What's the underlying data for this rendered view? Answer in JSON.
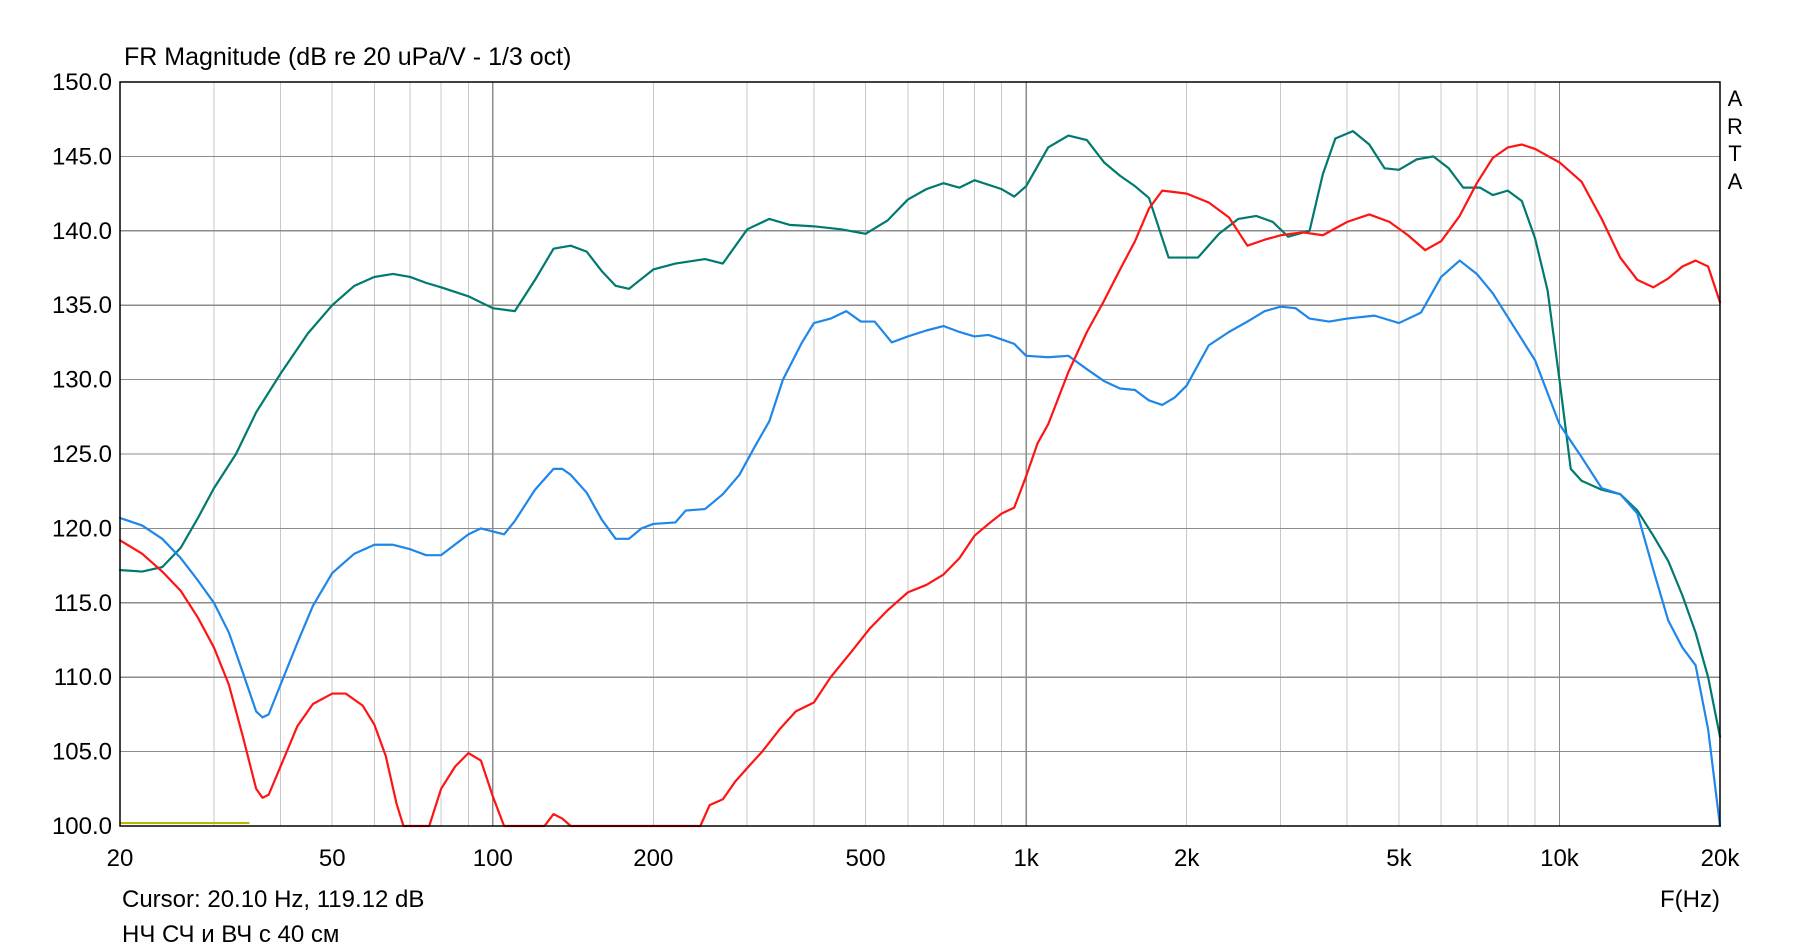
{
  "chart_data": {
    "type": "line",
    "title": "FR Magnitude (dB re 20 uPa/V - 1/3 oct)",
    "xlabel": "F(Hz)",
    "ylabel": "",
    "x_scale": "log",
    "xlim": [
      20,
      20000
    ],
    "ylim": [
      100,
      150
    ],
    "grid": true,
    "x_ticks": [
      20,
      50,
      100,
      200,
      500,
      1000,
      2000,
      5000,
      10000,
      20000
    ],
    "x_tick_labels": [
      "20",
      "50",
      "100",
      "200",
      "500",
      "1k",
      "2k",
      "5k",
      "10k",
      "20k"
    ],
    "y_ticks": [
      100,
      105,
      110,
      115,
      120,
      125,
      130,
      135,
      140,
      145,
      150
    ],
    "y_tick_labels": [
      "100.0",
      "105.0",
      "110.0",
      "115.0",
      "120.0",
      "125.0",
      "130.0",
      "135.0",
      "140.0",
      "145.0",
      "150.0"
    ],
    "logo_letters": [
      "A",
      "R",
      "T",
      "A"
    ],
    "cursor_text": "Cursor: 20.10 Hz, 119.12 dB",
    "note_text": "НЧ СЧ и ВЧ с 40 см",
    "colors": {
      "series_1": "#007a6e",
      "series_2": "#1f86ea",
      "series_3": "#ff1414",
      "grid": "#c8c8c8",
      "major_grid": "#8c8c8c",
      "axis": "#000000",
      "marker": "#b8b800"
    },
    "marker_segment": {
      "x": [
        20,
        35
      ],
      "y": 100.2
    },
    "series": [
      {
        "color": "#007a6e",
        "points": [
          [
            20,
            117.2
          ],
          [
            22,
            117.1
          ],
          [
            24,
            117.4
          ],
          [
            26,
            118.7
          ],
          [
            28,
            120.7
          ],
          [
            30,
            122.7
          ],
          [
            33,
            125.0
          ],
          [
            36,
            127.8
          ],
          [
            40,
            130.4
          ],
          [
            45,
            133.1
          ],
          [
            50,
            135.0
          ],
          [
            55,
            136.3
          ],
          [
            60,
            136.9
          ],
          [
            65,
            137.1
          ],
          [
            70,
            136.9
          ],
          [
            75,
            136.5
          ],
          [
            80,
            136.2
          ],
          [
            90,
            135.6
          ],
          [
            100,
            134.8
          ],
          [
            110,
            134.6
          ],
          [
            120,
            136.7
          ],
          [
            130,
            138.8
          ],
          [
            140,
            139.0
          ],
          [
            150,
            138.6
          ],
          [
            160,
            137.3
          ],
          [
            170,
            136.3
          ],
          [
            180,
            136.1
          ],
          [
            200,
            137.4
          ],
          [
            220,
            137.8
          ],
          [
            250,
            138.1
          ],
          [
            270,
            137.8
          ],
          [
            300,
            140.1
          ],
          [
            330,
            140.8
          ],
          [
            360,
            140.4
          ],
          [
            400,
            140.3
          ],
          [
            450,
            140.1
          ],
          [
            500,
            139.8
          ],
          [
            550,
            140.7
          ],
          [
            600,
            142.1
          ],
          [
            650,
            142.8
          ],
          [
            700,
            143.2
          ],
          [
            750,
            142.9
          ],
          [
            800,
            143.4
          ],
          [
            900,
            142.8
          ],
          [
            950,
            142.3
          ],
          [
            1000,
            143.0
          ],
          [
            1100,
            145.6
          ],
          [
            1200,
            146.4
          ],
          [
            1300,
            146.1
          ],
          [
            1400,
            144.6
          ],
          [
            1500,
            143.7
          ],
          [
            1600,
            143.0
          ],
          [
            1700,
            142.2
          ],
          [
            1850,
            138.2
          ],
          [
            2000,
            138.2
          ],
          [
            2100,
            138.2
          ],
          [
            2300,
            139.8
          ],
          [
            2500,
            140.8
          ],
          [
            2700,
            141.0
          ],
          [
            2900,
            140.6
          ],
          [
            3100,
            139.6
          ],
          [
            3400,
            140.0
          ],
          [
            3600,
            143.8
          ],
          [
            3800,
            146.2
          ],
          [
            4100,
            146.7
          ],
          [
            4400,
            145.8
          ],
          [
            4700,
            144.2
          ],
          [
            5000,
            144.1
          ],
          [
            5400,
            144.8
          ],
          [
            5800,
            145.0
          ],
          [
            6200,
            144.2
          ],
          [
            6600,
            142.9
          ],
          [
            7100,
            142.9
          ],
          [
            7500,
            142.4
          ],
          [
            8000,
            142.7
          ],
          [
            8500,
            142.0
          ],
          [
            9000,
            139.5
          ],
          [
            9500,
            136.0
          ],
          [
            10000,
            130.0
          ],
          [
            10500,
            124.0
          ],
          [
            11000,
            123.2
          ],
          [
            12000,
            122.6
          ],
          [
            13000,
            122.3
          ],
          [
            14000,
            121.2
          ],
          [
            15000,
            119.5
          ],
          [
            16000,
            117.8
          ],
          [
            17000,
            115.5
          ],
          [
            18000,
            113.0
          ],
          [
            19000,
            110.0
          ],
          [
            20000,
            106.0
          ]
        ]
      },
      {
        "color": "#1f86ea",
        "points": [
          [
            20,
            120.7
          ],
          [
            22,
            120.2
          ],
          [
            24,
            119.3
          ],
          [
            26,
            118.0
          ],
          [
            28,
            116.5
          ],
          [
            30,
            115.0
          ],
          [
            32,
            113.0
          ],
          [
            34,
            110.3
          ],
          [
            36,
            107.7
          ],
          [
            37,
            107.3
          ],
          [
            38,
            107.5
          ],
          [
            40,
            109.5
          ],
          [
            43,
            112.3
          ],
          [
            46,
            114.8
          ],
          [
            50,
            117.0
          ],
          [
            55,
            118.3
          ],
          [
            60,
            118.9
          ],
          [
            65,
            118.9
          ],
          [
            70,
            118.6
          ],
          [
            75,
            118.2
          ],
          [
            80,
            118.2
          ],
          [
            90,
            119.6
          ],
          [
            95,
            120.0
          ],
          [
            100,
            119.8
          ],
          [
            105,
            119.6
          ],
          [
            110,
            120.5
          ],
          [
            120,
            122.6
          ],
          [
            130,
            124.0
          ],
          [
            135,
            124.0
          ],
          [
            140,
            123.6
          ],
          [
            150,
            122.4
          ],
          [
            160,
            120.6
          ],
          [
            170,
            119.3
          ],
          [
            180,
            119.3
          ],
          [
            190,
            120.0
          ],
          [
            200,
            120.3
          ],
          [
            220,
            120.4
          ],
          [
            230,
            121.2
          ],
          [
            250,
            121.3
          ],
          [
            270,
            122.3
          ],
          [
            290,
            123.6
          ],
          [
            310,
            125.5
          ],
          [
            330,
            127.2
          ],
          [
            350,
            130.0
          ],
          [
            380,
            132.5
          ],
          [
            400,
            133.8
          ],
          [
            430,
            134.1
          ],
          [
            460,
            134.6
          ],
          [
            490,
            133.9
          ],
          [
            520,
            133.9
          ],
          [
            560,
            132.5
          ],
          [
            600,
            132.9
          ],
          [
            650,
            133.3
          ],
          [
            700,
            133.6
          ],
          [
            750,
            133.2
          ],
          [
            800,
            132.9
          ],
          [
            850,
            133.0
          ],
          [
            900,
            132.7
          ],
          [
            950,
            132.4
          ],
          [
            1000,
            131.6
          ],
          [
            1100,
            131.5
          ],
          [
            1200,
            131.6
          ],
          [
            1300,
            130.7
          ],
          [
            1400,
            129.9
          ],
          [
            1500,
            129.4
          ],
          [
            1600,
            129.3
          ],
          [
            1700,
            128.6
          ],
          [
            1800,
            128.3
          ],
          [
            1900,
            128.8
          ],
          [
            2000,
            129.6
          ],
          [
            2200,
            132.3
          ],
          [
            2400,
            133.2
          ],
          [
            2600,
            133.9
          ],
          [
            2800,
            134.6
          ],
          [
            3000,
            134.9
          ],
          [
            3200,
            134.8
          ],
          [
            3400,
            134.1
          ],
          [
            3700,
            133.9
          ],
          [
            4000,
            134.1
          ],
          [
            4500,
            134.3
          ],
          [
            5000,
            133.8
          ],
          [
            5500,
            134.5
          ],
          [
            6000,
            136.9
          ],
          [
            6500,
            138.0
          ],
          [
            7000,
            137.1
          ],
          [
            7500,
            135.8
          ],
          [
            8000,
            134.2
          ],
          [
            9000,
            131.3
          ],
          [
            10000,
            127.0
          ],
          [
            11000,
            124.8
          ],
          [
            12000,
            122.7
          ],
          [
            13000,
            122.3
          ],
          [
            14000,
            121.0
          ],
          [
            15000,
            117.2
          ],
          [
            16000,
            113.8
          ],
          [
            17000,
            112.0
          ],
          [
            18000,
            110.8
          ],
          [
            19000,
            106.5
          ],
          [
            20000,
            100.0
          ]
        ]
      },
      {
        "color": "#ff1414",
        "points": [
          [
            20,
            119.2
          ],
          [
            22,
            118.3
          ],
          [
            24,
            117.1
          ],
          [
            26,
            115.8
          ],
          [
            28,
            114.0
          ],
          [
            30,
            112.0
          ],
          [
            32,
            109.5
          ],
          [
            34,
            106.0
          ],
          [
            36,
            102.5
          ],
          [
            37,
            101.9
          ],
          [
            38,
            102.1
          ],
          [
            40,
            104.0
          ],
          [
            43,
            106.7
          ],
          [
            46,
            108.2
          ],
          [
            50,
            108.9
          ],
          [
            53,
            108.9
          ],
          [
            57,
            108.1
          ],
          [
            60,
            106.8
          ],
          [
            63,
            104.7
          ],
          [
            66,
            101.5
          ],
          [
            68,
            100.0
          ],
          [
            76,
            100.0
          ],
          [
            80,
            102.5
          ],
          [
            85,
            104.0
          ],
          [
            90,
            104.9
          ],
          [
            95,
            104.4
          ],
          [
            100,
            102.0
          ],
          [
            105,
            100.0
          ],
          [
            125,
            100.0
          ],
          [
            130,
            100.8
          ],
          [
            135,
            100.5
          ],
          [
            140,
            100.0
          ],
          [
            245,
            100.0
          ],
          [
            255,
            101.4
          ],
          [
            270,
            101.8
          ],
          [
            285,
            103.0
          ],
          [
            300,
            103.9
          ],
          [
            320,
            105.0
          ],
          [
            345,
            106.5
          ],
          [
            370,
            107.7
          ],
          [
            400,
            108.3
          ],
          [
            430,
            110.0
          ],
          [
            470,
            111.7
          ],
          [
            510,
            113.3
          ],
          [
            550,
            114.5
          ],
          [
            600,
            115.7
          ],
          [
            650,
            116.2
          ],
          [
            700,
            116.9
          ],
          [
            750,
            118.0
          ],
          [
            800,
            119.5
          ],
          [
            850,
            120.3
          ],
          [
            900,
            121.0
          ],
          [
            950,
            121.4
          ],
          [
            1000,
            123.5
          ],
          [
            1050,
            125.7
          ],
          [
            1100,
            127.0
          ],
          [
            1200,
            130.5
          ],
          [
            1300,
            133.2
          ],
          [
            1400,
            135.3
          ],
          [
            1500,
            137.4
          ],
          [
            1600,
            139.3
          ],
          [
            1700,
            141.5
          ],
          [
            1800,
            142.7
          ],
          [
            1900,
            142.6
          ],
          [
            2000,
            142.5
          ],
          [
            2200,
            141.9
          ],
          [
            2400,
            140.9
          ],
          [
            2600,
            139.0
          ],
          [
            2800,
            139.4
          ],
          [
            3000,
            139.7
          ],
          [
            3300,
            139.9
          ],
          [
            3600,
            139.7
          ],
          [
            4000,
            140.6
          ],
          [
            4400,
            141.1
          ],
          [
            4800,
            140.6
          ],
          [
            5200,
            139.7
          ],
          [
            5600,
            138.7
          ],
          [
            6000,
            139.3
          ],
          [
            6500,
            141.0
          ],
          [
            7000,
            143.2
          ],
          [
            7500,
            144.9
          ],
          [
            8000,
            145.6
          ],
          [
            8500,
            145.8
          ],
          [
            9000,
            145.5
          ],
          [
            10000,
            144.6
          ],
          [
            11000,
            143.3
          ],
          [
            12000,
            140.8
          ],
          [
            13000,
            138.2
          ],
          [
            14000,
            136.7
          ],
          [
            15000,
            136.2
          ],
          [
            16000,
            136.8
          ],
          [
            17000,
            137.6
          ],
          [
            18000,
            138.0
          ],
          [
            19000,
            137.6
          ],
          [
            20000,
            135.2
          ]
        ]
      }
    ]
  }
}
